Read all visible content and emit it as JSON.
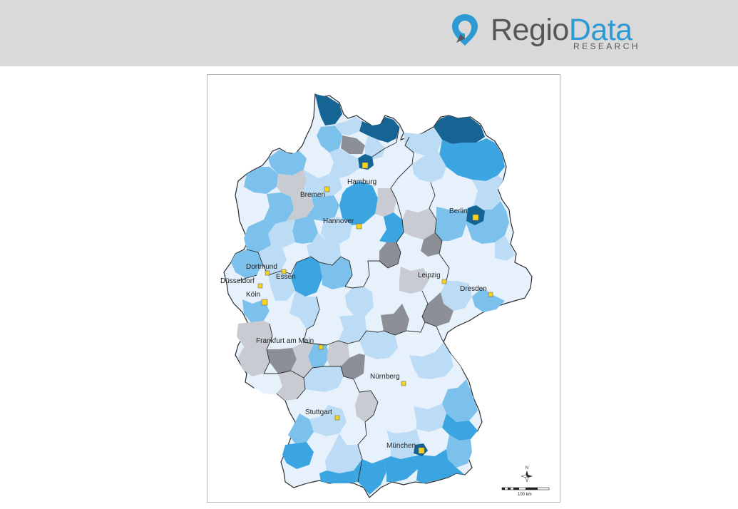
{
  "logo": {
    "word_part1": "Regio",
    "word_part2": "Data",
    "subtitle": "RESEARCH"
  },
  "colors": {
    "header_bg": "#d9d9d9",
    "brand_blue": "#2d9ad3",
    "brand_gray": "#555759",
    "class_1": "#e6f1fb",
    "class_2": "#bcdcf5",
    "class_3": "#7cc0ec",
    "class_4": "#3aa5e0",
    "class_5": "#156494",
    "no_data": "#c8ccd2",
    "no_data_dark": "#8c9096",
    "city_marker": "#f6d51c"
  },
  "map": {
    "cities": [
      {
        "name": "Hamburg"
      },
      {
        "name": "Bremen"
      },
      {
        "name": "Hannover"
      },
      {
        "name": "Berlin"
      },
      {
        "name": "Dortmund"
      },
      {
        "name": "Essen"
      },
      {
        "name": "Düsseldorf"
      },
      {
        "name": "Köln"
      },
      {
        "name": "Leipzig"
      },
      {
        "name": "Dresden"
      },
      {
        "name": "Frankfurt am Main"
      },
      {
        "name": "Nürnberg"
      },
      {
        "name": "Stuttgart"
      },
      {
        "name": "München"
      }
    ],
    "scale_label": "100 km",
    "north_label": "N"
  }
}
